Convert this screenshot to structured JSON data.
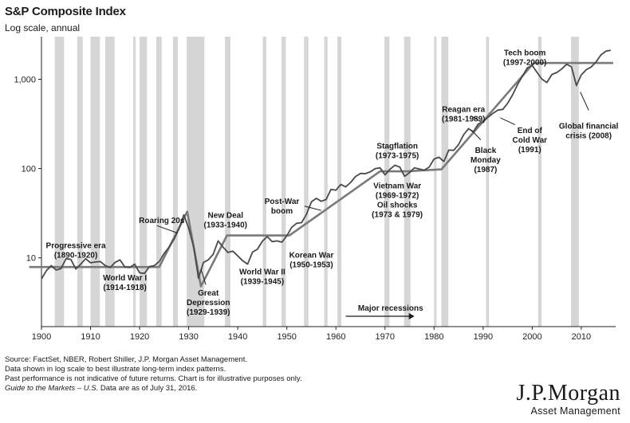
{
  "chart_data": {
    "type": "line",
    "title": "S&P Composite Index",
    "subtitle": "Log scale, annual",
    "y_scale": "log",
    "xlim": [
      1900,
      2017
    ],
    "ylim": [
      1.7,
      3000
    ],
    "x_ticks": [
      1900,
      1910,
      1920,
      1930,
      1940,
      1950,
      1960,
      1970,
      1980,
      1990,
      2000,
      2010
    ],
    "y_ticks": [
      {
        "value": 10,
        "label": "10"
      },
      {
        "value": 100,
        "label": "100"
      },
      {
        "value": 1000,
        "label": "1,000"
      }
    ],
    "grid": false,
    "series": [
      {
        "name": "",
        "color": "#4a4a4a",
        "x": [
          1900,
          1901,
          1902,
          1903,
          1904,
          1905,
          1906,
          1907,
          1908,
          1909,
          1910,
          1911,
          1912,
          1913,
          1914,
          1915,
          1916,
          1917,
          1918,
          1919,
          1920,
          1921,
          1922,
          1923,
          1924,
          1925,
          1926,
          1927,
          1928,
          1929,
          1930,
          1931,
          1932,
          1933,
          1934,
          1935,
          1936,
          1937,
          1938,
          1939,
          1940,
          1941,
          1942,
          1943,
          1944,
          1945,
          1946,
          1947,
          1948,
          1949,
          1950,
          1951,
          1952,
          1953,
          1954,
          1955,
          1956,
          1957,
          1958,
          1959,
          1960,
          1961,
          1962,
          1963,
          1964,
          1965,
          1966,
          1967,
          1968,
          1969,
          1970,
          1971,
          1972,
          1973,
          1974,
          1975,
          1976,
          1977,
          1978,
          1979,
          1980,
          1981,
          1982,
          1983,
          1984,
          1985,
          1986,
          1987,
          1988,
          1989,
          1990,
          1991,
          1992,
          1993,
          1994,
          1995,
          1996,
          1997,
          1998,
          1999,
          2000,
          2001,
          2002,
          2003,
          2004,
          2005,
          2006,
          2007,
          2008,
          2009,
          2010,
          2011,
          2012,
          2013,
          2014,
          2015,
          2016
        ],
        "y": [
          5.8,
          7.2,
          8.2,
          7.3,
          7.6,
          9.8,
          9.6,
          7.5,
          8.5,
          9.8,
          8.8,
          9.0,
          9.1,
          8.2,
          7.8,
          8.9,
          9.5,
          7.9,
          7.8,
          8.5,
          6.8,
          6.7,
          8.0,
          8.2,
          9.1,
          11.2,
          13.2,
          16.1,
          21.0,
          30.3,
          21.5,
          13.3,
          5.9,
          8.9,
          9.5,
          11.0,
          15.5,
          13.2,
          11.5,
          11.9,
          10.5,
          9.3,
          8.5,
          11.6,
          12.5,
          15.3,
          17.3,
          15.2,
          15.5,
          15.0,
          17.7,
          22.0,
          24.4,
          24.8,
          30.7,
          42.4,
          46.4,
          43.0,
          45.0,
          58.5,
          57.2,
          66.3,
          62.3,
          69.9,
          81.4,
          88.2,
          87.7,
          92.0,
          100.0,
          101.9,
          85.0,
          98.0,
          109.0,
          104.0,
          82.0,
          90.0,
          102.0,
          99.0,
          96.0,
          104.0,
          128.0,
          134.0,
          120.0,
          161.0,
          160.0,
          186.0,
          238.0,
          280.0,
          258.0,
          315.0,
          335.0,
          375.0,
          416.0,
          452.0,
          460.0,
          540.0,
          670.0,
          870.0,
          1080.0,
          1340.0,
          1430.0,
          1190.0,
          1000.0,
          920.0,
          1130.0,
          1190.0,
          1300.0,
          1470.0,
          1380.0,
          850.0,
          1120.0,
          1280.0,
          1370.0,
          1560.0,
          1870.0,
          2060.0,
          2110.0
        ]
      }
    ],
    "trend_lines": [
      {
        "x": [
          1897.5,
          1924,
          1929.7,
          1932.5,
          1937.8,
          1950.5,
          1969,
          1974.5,
          1981.5,
          2000.3,
          2016.5
        ],
        "y": [
          7.9,
          7.9,
          33.0,
          4.8,
          17.8,
          17.8,
          93.0,
          93.0,
          98.0,
          1520.0,
          1520.0
        ]
      }
    ],
    "recession_label": "Major recessions",
    "recession_bands": [
      [
        1902.7,
        1904.6
      ],
      [
        1907.3,
        1908.4
      ],
      [
        1910.0,
        1911.9
      ],
      [
        1913.0,
        1914.9
      ],
      [
        1918.7,
        1919.2
      ],
      [
        1920.0,
        1921.5
      ],
      [
        1923.4,
        1924.5
      ],
      [
        1926.8,
        1927.8
      ],
      [
        1929.6,
        1933.2
      ],
      [
        1937.4,
        1938.5
      ],
      [
        1945.1,
        1945.8
      ],
      [
        1948.9,
        1949.8
      ],
      [
        1953.5,
        1954.4
      ],
      [
        1957.6,
        1958.3
      ],
      [
        1960.3,
        1961.1
      ],
      [
        1969.9,
        1970.9
      ],
      [
        1973.9,
        1975.2
      ],
      [
        1980.0,
        1980.5
      ],
      [
        1981.5,
        1982.9
      ],
      [
        1990.6,
        1991.2
      ],
      [
        2001.2,
        2001.9
      ],
      [
        2007.9,
        2009.5
      ]
    ],
    "annotations": [
      {
        "text": "Progressive era",
        "text2": "(1890-1920)",
        "x": 1907,
        "y": 12.8
      },
      {
        "text": "Roaring 20s",
        "text2": "",
        "x": 1924.5,
        "y": 24.5
      },
      {
        "text": "World War I",
        "text2": "(1914-1918)",
        "x": 1917,
        "y": 5.6
      },
      {
        "text": "Great",
        "text2": "Depression",
        "text3": "(1929-1939)",
        "x": 1934,
        "y": 3.8
      },
      {
        "text": "New Deal",
        "text2": "(1933-1940)",
        "x": 1937.5,
        "y": 28.0
      },
      {
        "text": "World War II",
        "text2": "(1939-1945)",
        "x": 1945,
        "y": 6.5
      },
      {
        "text": "Post-War",
        "text2": "boom",
        "x": 1949,
        "y": 40.0
      },
      {
        "text": "Korean War",
        "text2": "(1950-1953)",
        "x": 1955,
        "y": 10.0
      },
      {
        "text": "Stagflation",
        "text2": "(1973-1975)",
        "x": 1972.5,
        "y": 168.0
      },
      {
        "text": "Vietnam War",
        "text2": "(1969-1972)",
        "text3": "Oil shocks",
        "text4": "(1973 & 1979)",
        "x": 1972.5,
        "y": 60.0
      },
      {
        "text": "Reagan era",
        "text2": "(1981-1989)",
        "x": 1986,
        "y": 430.0
      },
      {
        "text": "Black",
        "text2": "Monday",
        "text3": "(1987)",
        "x": 1990.5,
        "y": 150.0
      },
      {
        "text": "End of",
        "text2": "Cold War",
        "text3": "(1991)",
        "x": 1999.5,
        "y": 250.0
      },
      {
        "text": "Tech boom",
        "text2": "(1997-2000)",
        "x": 1998.5,
        "y": 1850.0
      },
      {
        "text": "Global financial",
        "text2": "crisis (2008)",
        "x": 2011.5,
        "y": 280.0
      }
    ],
    "annotation_arrows": [
      {
        "from": [
          1923.5,
          23.0
        ],
        "to": [
          1927.7,
          19.0
        ]
      },
      {
        "from": [
          1933.5,
          5.0
        ],
        "to": [
          1932.5,
          7.5
        ]
      },
      {
        "from": [
          1953.6,
          38.0
        ],
        "to": [
          1957.0,
          34.0
        ]
      },
      {
        "from": [
          1987.5,
          390.0
        ],
        "to": [
          1989.5,
          335.0
        ]
      },
      {
        "from": [
          1989.5,
          210.0
        ],
        "to": [
          1987.6,
          270.0
        ]
      },
      {
        "from": [
          1996.5,
          310.0
        ],
        "to": [
          1993.5,
          370.0
        ]
      },
      {
        "from": [
          2011.5,
          450.0
        ],
        "to": [
          2009.8,
          720.0
        ]
      }
    ]
  },
  "footer": {
    "source": "Source: FactSet, NBER, Robert Shiller, J.P. Morgan Asset Management.",
    "note1": "Data shown in log scale to best illustrate long-term index patterns.",
    "note2": "Past performance is not indicative of future returns. Chart is for illustrative purposes only.",
    "guide_italic": "Guide to the Markets – U.S.",
    "guide_rest": " Data are as of July 31, 2016."
  },
  "brand": {
    "name": "J.P.Morgan",
    "division": "Asset Management"
  }
}
